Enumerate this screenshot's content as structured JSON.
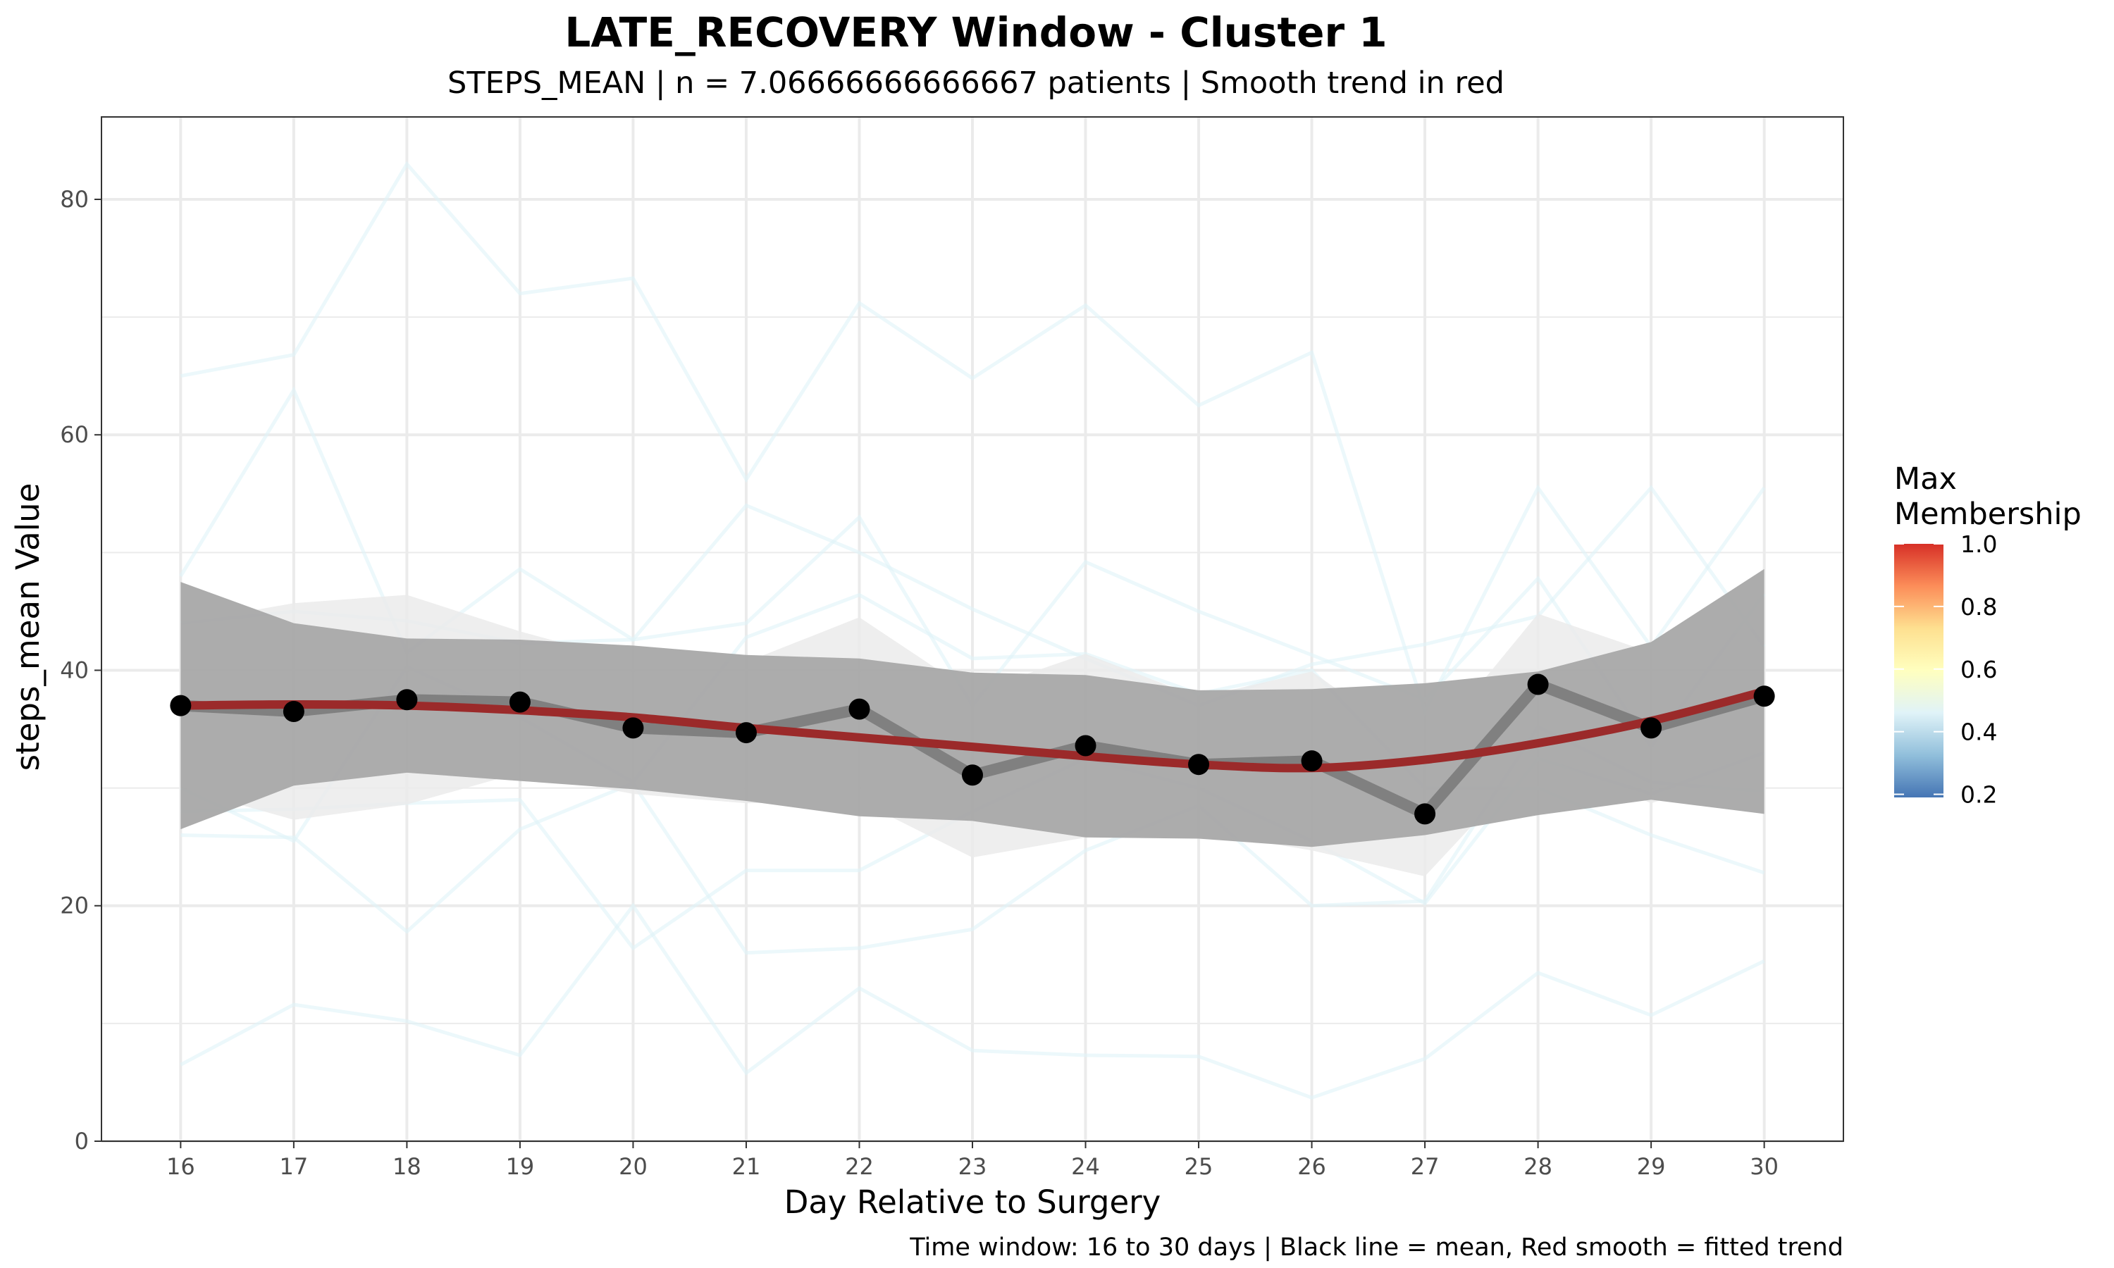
{
  "chart_data": {
    "type": "line",
    "title": "LATE_RECOVERY Window - Cluster 1",
    "subtitle": "STEPS_MEAN | n = 7.06666666666667 patients | Smooth trend in red",
    "xlabel": "Day Relative to Surgery",
    "ylabel": "steps_mean Value",
    "caption": "Time window: 16 to 30 days | Black line = mean, Red smooth = fitted trend",
    "xlim": [
      15.3,
      30.7
    ],
    "ylim": [
      0,
      87
    ],
    "x_ticks": [
      16,
      17,
      18,
      19,
      20,
      21,
      22,
      23,
      24,
      25,
      26,
      27,
      28,
      29,
      30
    ],
    "y_ticks": [
      0,
      20,
      40,
      60,
      80
    ],
    "grid": true,
    "legend": {
      "title": "Max\nMembership",
      "type": "colorbar",
      "placement": "right",
      "breaks": [
        1.0,
        0.8,
        0.6,
        0.4,
        0.2
      ],
      "labels": [
        "1.0",
        "0.8",
        "0.6",
        "0.4",
        "0.2"
      ],
      "range": [
        0.19,
        1.0
      ],
      "colors": [
        "#4575b4",
        "#91bfdb",
        "#e0f3f8",
        "#ffffbf",
        "#fee090",
        "#fc8d59",
        "#d73027"
      ]
    },
    "colors": {
      "individual": "#e0f3f8",
      "mean_line": "#808080",
      "mean_points": "#000000",
      "smooth": "#9b2a2a",
      "smooth_ribbon": "#a8a8a8",
      "mean_ribbon": "#ebebeb",
      "grid": "#ebebeb",
      "panel_border": "#333333"
    },
    "x": [
      16,
      17,
      18,
      19,
      20,
      21,
      22,
      23,
      24,
      25,
      26,
      27,
      28,
      29,
      30
    ],
    "individual_series": [
      [
        65,
        66.8,
        83,
        72,
        73.3,
        56.2,
        71.2,
        64.8,
        71,
        62.5,
        67,
        36.5,
        55.5,
        42,
        55.5
      ],
      [
        48,
        63.8,
        41.5,
        48.6,
        42.6,
        44,
        53,
        37,
        49.2,
        45,
        41.3,
        37.5,
        47.8,
        33.5,
        46.5
      ],
      [
        44,
        45,
        44.2,
        42.3,
        42.6,
        54,
        50,
        45.2,
        41,
        37,
        40.5,
        42.2,
        44.6,
        55.5,
        42
      ],
      [
        30,
        25.5,
        40.3,
        36,
        30.5,
        42.8,
        46.4,
        41,
        41.4,
        38,
        40,
        30,
        30,
        26,
        22.8
      ],
      [
        26,
        25.8,
        17.8,
        26.5,
        30.4,
        16,
        16.4,
        18,
        24.7,
        28.5,
        20,
        20.4,
        35.2,
        30.5,
        29.7
      ],
      [
        28,
        28.2,
        28.7,
        29,
        16.4,
        23,
        23,
        28,
        32.5,
        30,
        25.5,
        20.2,
        32.5,
        29.5,
        33
      ],
      [
        6.5,
        11.6,
        10.2,
        7.3,
        20,
        5.8,
        13,
        7.7,
        7.3,
        7.2,
        3.7,
        7,
        14.3,
        10.7,
        15.3
      ]
    ],
    "mean": [
      37,
      36.5,
      37.5,
      37.3,
      35.1,
      34.7,
      36.7,
      31.1,
      33.6,
      32,
      32.3,
      27.8,
      38.8,
      35.1,
      37.8
    ],
    "mean_ci_upper": [
      44,
      45.7,
      46.4,
      43.3,
      40.7,
      40.7,
      44.5,
      38.1,
      41.4,
      37.7,
      39.9,
      33.1,
      44.8,
      41.5,
      43.8
    ],
    "mean_ci_lower": [
      30,
      27.3,
      28.6,
      31.3,
      29.5,
      28.7,
      28.9,
      24.1,
      25.8,
      26.3,
      24.7,
      22.5,
      32.8,
      28.7,
      31.8
    ],
    "smooth": [
      37,
      37.1,
      37,
      36.6,
      36,
      35.1,
      34.3,
      33.5,
      32.7,
      32,
      31.7,
      32.4,
      33.8,
      35.7,
      38.2
    ],
    "smooth_upper": [
      47.5,
      44,
      42.7,
      42.6,
      42.1,
      41.3,
      41,
      39.8,
      39.6,
      38.3,
      38.4,
      38.9,
      39.9,
      42.4,
      48.6
    ],
    "smooth_lower": [
      26.5,
      30.2,
      31.3,
      30.6,
      29.9,
      28.9,
      27.6,
      27.2,
      25.8,
      25.7,
      25,
      26,
      27.7,
      29,
      27.8
    ]
  }
}
